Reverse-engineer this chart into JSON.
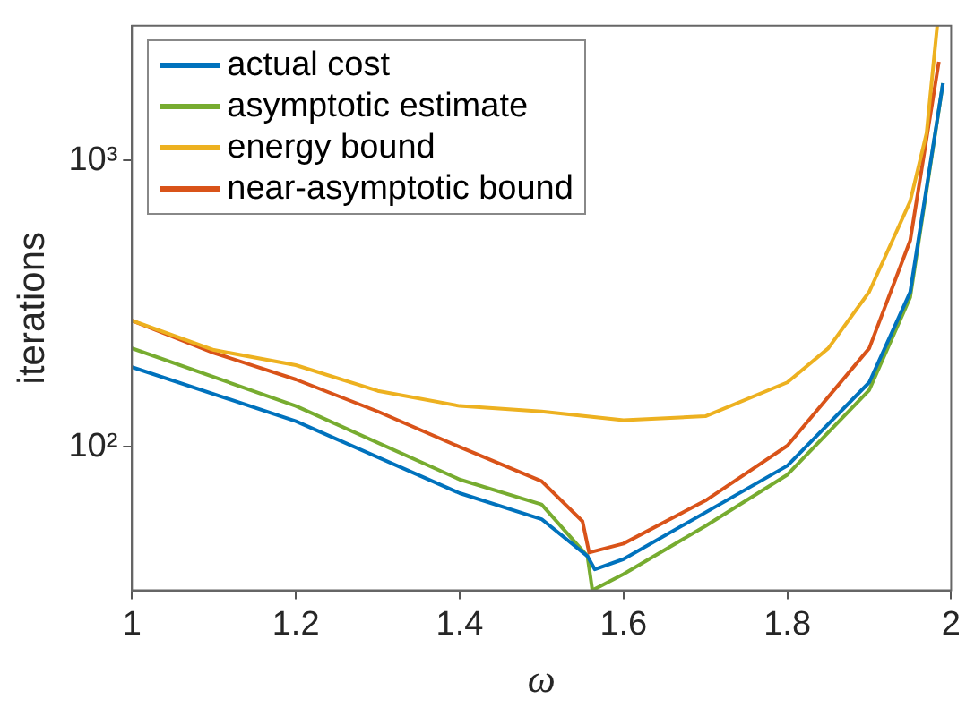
{
  "chart_data": {
    "type": "line",
    "xlabel": "ω",
    "ylabel": "iterations",
    "xlim": [
      1,
      2
    ],
    "xticks": [
      1,
      1.2,
      1.4,
      1.6,
      1.8,
      2
    ],
    "ylim": [
      31.6,
      2950
    ],
    "yticks": [
      {
        "value": 100,
        "label": "10²"
      },
      {
        "value": 1000,
        "label": "10³"
      }
    ],
    "log": "y",
    "grid": false,
    "legend": "top left",
    "marker": "none",
    "line_style": "solid",
    "series": [
      {
        "name": "actual cost",
        "color": "#0072bd",
        "x": [
          1,
          1.2,
          1.4,
          1.5,
          1.556,
          1.565,
          1.6,
          1.8,
          1.9,
          1.95,
          1.99
        ],
        "values": [
          190,
          123,
          69,
          56,
          41.6,
          37.4,
          40.6,
          86,
          168,
          347,
          1860
        ]
      },
      {
        "name": "asymptotic estimate",
        "color": "#77ac30",
        "x": [
          1,
          1.2,
          1.4,
          1.5,
          1.556,
          1.562,
          1.6,
          1.7,
          1.8,
          1.9,
          1.95,
          1.99
        ],
        "values": [
          221,
          139,
          77,
          63,
          41.6,
          31.6,
          36,
          53,
          80,
          158,
          333,
          1860
        ]
      },
      {
        "name": "energy bound",
        "color": "#edb120",
        "x": [
          1,
          1.1,
          1.2,
          1.3,
          1.4,
          1.5,
          1.6,
          1.7,
          1.8,
          1.85,
          1.9,
          1.95,
          1.97,
          1.983
        ],
        "values": [
          276,
          218,
          193,
          157,
          139,
          133,
          124,
          128,
          168,
          221,
          348,
          720,
          1245,
          2950
        ]
      },
      {
        "name": "near-asymptotic bound",
        "color": "#d95319",
        "x": [
          1,
          1.1,
          1.2,
          1.3,
          1.4,
          1.5,
          1.55,
          1.558,
          1.6,
          1.7,
          1.8,
          1.9,
          1.95,
          1.985
        ],
        "values": [
          276,
          213,
          172,
          133,
          100,
          76,
          55,
          42.8,
          46,
          65,
          101,
          221,
          525,
          2210
        ]
      }
    ]
  }
}
